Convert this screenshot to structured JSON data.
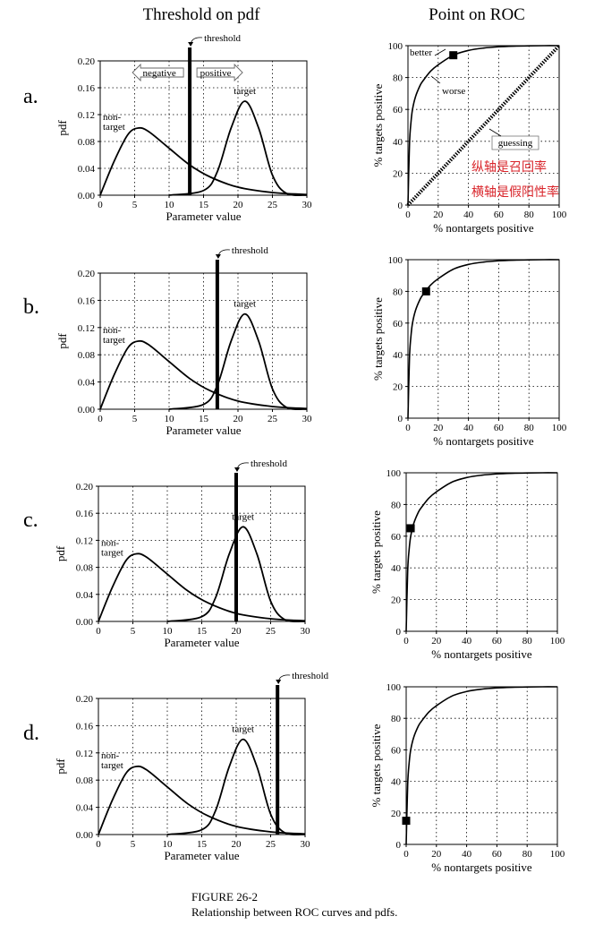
{
  "figure": {
    "left_title": "Threshold on pdf",
    "right_title": "Point on ROC",
    "caption_line1": "FIGURE 26-2",
    "caption_line2": "Relationship between ROC curves and pdfs.",
    "annotation_cn_1": "纵轴是召回率",
    "annotation_cn_2": "横轴是假阳性率"
  },
  "labels": {
    "pdf_ylabel": "pdf",
    "pdf_xlabel": "Parameter value",
    "roc_ylabel": "% targets positive",
    "roc_xlabel": "% nontargets positive",
    "threshold": "threshold",
    "target": "target",
    "nontarget_1": "non-",
    "nontarget_2": "target",
    "negative": "negative",
    "positive": "positive",
    "better": "better",
    "worse": "worse",
    "guessing": "guessing"
  },
  "chart_data": [
    {
      "type": "line",
      "panel": "a.",
      "pdf": {
        "x_range": [
          0,
          30
        ],
        "xticks": [
          0,
          5,
          10,
          15,
          20,
          25,
          30
        ],
        "y_range": [
          0,
          0.2
        ],
        "yticks": [
          "0.00",
          "0.04",
          "0.08",
          "0.12",
          "0.16",
          "0.20"
        ],
        "series": [
          {
            "name": "non-target",
            "x": [
              0,
              2,
              4,
              5.5,
              7,
              10,
              13,
              16,
              20,
              25,
              30
            ],
            "y": [
              0,
              0.05,
              0.09,
              0.1,
              0.095,
              0.07,
              0.045,
              0.027,
              0.012,
              0.004,
              0.001
            ]
          },
          {
            "name": "target",
            "x": [
              10,
              15,
              17,
              19,
              21,
              23,
              25,
              27,
              30
            ],
            "y": [
              0,
              0.007,
              0.035,
              0.1,
              0.14,
              0.1,
              0.03,
              0.003,
              0
            ]
          }
        ],
        "threshold": 13
      },
      "roc": {
        "x_range": [
          0,
          100
        ],
        "y_range": [
          0,
          100
        ],
        "ticks": [
          0,
          20,
          40,
          60,
          80,
          100
        ],
        "curve_x": [
          0,
          1,
          2,
          3,
          5,
          8,
          10,
          15,
          20,
          30,
          40,
          50,
          60,
          70,
          80,
          90,
          100
        ],
        "curve_y": [
          0,
          38,
          52,
          60,
          68,
          75,
          78,
          84,
          88,
          94,
          97,
          98.5,
          99.3,
          99.7,
          99.9,
          100,
          100
        ],
        "point": [
          30,
          94
        ],
        "guessing_line": true
      }
    },
    {
      "type": "line",
      "panel": "b.",
      "pdf": {
        "x_range": [
          0,
          30
        ],
        "xticks": [
          0,
          5,
          10,
          15,
          20,
          25,
          30
        ],
        "y_range": [
          0,
          0.2
        ],
        "yticks": [
          "0.00",
          "0.04",
          "0.08",
          "0.12",
          "0.16",
          "0.20"
        ],
        "series": [
          {
            "name": "non-target",
            "x": [
              0,
              2,
              4,
              5.5,
              7,
              10,
              13,
              16,
              20,
              25,
              30
            ],
            "y": [
              0,
              0.05,
              0.09,
              0.1,
              0.095,
              0.07,
              0.045,
              0.027,
              0.012,
              0.004,
              0.001
            ]
          },
          {
            "name": "target",
            "x": [
              10,
              15,
              17,
              19,
              21,
              23,
              25,
              27,
              30
            ],
            "y": [
              0,
              0.007,
              0.035,
              0.1,
              0.14,
              0.1,
              0.03,
              0.003,
              0
            ]
          }
        ],
        "threshold": 17
      },
      "roc": {
        "x_range": [
          0,
          100
        ],
        "y_range": [
          0,
          100
        ],
        "ticks": [
          0,
          20,
          40,
          60,
          80,
          100
        ],
        "curve_x": [
          0,
          1,
          2,
          3,
          5,
          8,
          10,
          15,
          20,
          30,
          40,
          50,
          60,
          70,
          80,
          90,
          100
        ],
        "curve_y": [
          0,
          38,
          52,
          60,
          68,
          75,
          78,
          84,
          88,
          94,
          97,
          98.5,
          99.3,
          99.7,
          99.9,
          100,
          100
        ],
        "point": [
          12,
          80
        ],
        "guessing_line": false
      }
    },
    {
      "type": "line",
      "panel": "c.",
      "pdf": {
        "x_range": [
          0,
          30
        ],
        "xticks": [
          0,
          5,
          10,
          15,
          20,
          25,
          30
        ],
        "y_range": [
          0,
          0.2
        ],
        "yticks": [
          "0.00",
          "0.04",
          "0.08",
          "0.12",
          "0.16",
          "0.20"
        ],
        "series": [
          {
            "name": "non-target",
            "x": [
              0,
              2,
              4,
              5.5,
              7,
              10,
              13,
              16,
              20,
              25,
              30
            ],
            "y": [
              0,
              0.05,
              0.09,
              0.1,
              0.095,
              0.07,
              0.045,
              0.027,
              0.012,
              0.004,
              0.001
            ]
          },
          {
            "name": "target",
            "x": [
              10,
              15,
              17,
              19,
              21,
              23,
              25,
              27,
              30
            ],
            "y": [
              0,
              0.007,
              0.035,
              0.1,
              0.14,
              0.1,
              0.03,
              0.003,
              0
            ]
          }
        ],
        "threshold": 20
      },
      "roc": {
        "x_range": [
          0,
          100
        ],
        "y_range": [
          0,
          100
        ],
        "ticks": [
          0,
          20,
          40,
          60,
          80,
          100
        ],
        "curve_x": [
          0,
          1,
          2,
          3,
          5,
          8,
          10,
          15,
          20,
          30,
          40,
          50,
          60,
          70,
          80,
          90,
          100
        ],
        "curve_y": [
          0,
          38,
          52,
          60,
          68,
          75,
          78,
          84,
          88,
          94,
          97,
          98.5,
          99.3,
          99.7,
          99.9,
          100,
          100
        ],
        "point": [
          3,
          65
        ],
        "guessing_line": false
      }
    },
    {
      "type": "line",
      "panel": "d.",
      "pdf": {
        "x_range": [
          0,
          30
        ],
        "xticks": [
          0,
          5,
          10,
          15,
          20,
          25,
          30
        ],
        "y_range": [
          0,
          0.2
        ],
        "yticks": [
          "0.00",
          "0.04",
          "0.08",
          "0.12",
          "0.16",
          "0.20"
        ],
        "series": [
          {
            "name": "non-target",
            "x": [
              0,
              2,
              4,
              5.5,
              7,
              10,
              13,
              16,
              20,
              25,
              30
            ],
            "y": [
              0,
              0.05,
              0.09,
              0.1,
              0.095,
              0.07,
              0.045,
              0.027,
              0.012,
              0.004,
              0.001
            ]
          },
          {
            "name": "target",
            "x": [
              10,
              15,
              17,
              19,
              21,
              23,
              25,
              27,
              30
            ],
            "y": [
              0,
              0.007,
              0.035,
              0.1,
              0.14,
              0.1,
              0.03,
              0.003,
              0
            ]
          }
        ],
        "threshold": 26
      },
      "roc": {
        "x_range": [
          0,
          100
        ],
        "y_range": [
          0,
          100
        ],
        "ticks": [
          0,
          20,
          40,
          60,
          80,
          100
        ],
        "curve_x": [
          0,
          1,
          2,
          3,
          5,
          8,
          10,
          15,
          20,
          30,
          40,
          50,
          60,
          70,
          80,
          90,
          100
        ],
        "curve_y": [
          0,
          38,
          52,
          60,
          68,
          75,
          78,
          84,
          88,
          94,
          97,
          98.5,
          99.3,
          99.7,
          99.9,
          100,
          100
        ],
        "point": [
          0,
          15
        ],
        "guessing_line": false
      }
    }
  ]
}
